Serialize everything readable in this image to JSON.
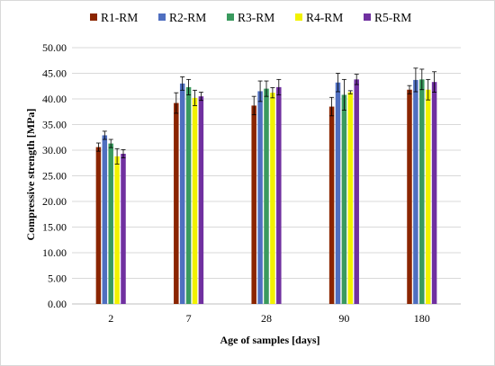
{
  "chart_data": {
    "type": "bar",
    "title": "",
    "xlabel": "Age of samples [days]",
    "ylabel": "Compressive strength [MPa]",
    "categories": [
      "2",
      "7",
      "28",
      "90",
      "180"
    ],
    "ylim": [
      0,
      50
    ],
    "y_ticks": [
      "0.00",
      "5.00",
      "10.00",
      "15.00",
      "20.00",
      "25.00",
      "30.00",
      "35.00",
      "40.00",
      "45.00",
      "50.00"
    ],
    "grid": true,
    "legend_position": "top",
    "series": [
      {
        "name": "R1-RM",
        "color": "#8B2500",
        "values": [
          30.6,
          39.2,
          38.7,
          38.5,
          41.8
        ],
        "errors": [
          0.8,
          2.0,
          1.8,
          1.8,
          0.8
        ]
      },
      {
        "name": "R2-RM",
        "color": "#4F6FC0",
        "values": [
          32.9,
          43.0,
          41.5,
          43.2,
          43.7
        ],
        "errors": [
          0.8,
          1.3,
          2.0,
          1.8,
          2.3
        ]
      },
      {
        "name": "R3-RM",
        "color": "#3A9A5E",
        "values": [
          31.3,
          42.3,
          42.0,
          40.8,
          43.8
        ],
        "errors": [
          0.8,
          1.5,
          1.5,
          3.0,
          2.0
        ]
      },
      {
        "name": "R4-RM",
        "color": "#F2F200",
        "values": [
          28.8,
          40.2,
          41.2,
          41.3,
          41.8
        ],
        "errors": [
          1.5,
          1.5,
          1.0,
          0.3,
          2.0
        ]
      },
      {
        "name": "R5-RM",
        "color": "#7030A0",
        "values": [
          29.3,
          40.5,
          42.3,
          43.8,
          43.3
        ],
        "errors": [
          0.8,
          0.8,
          1.5,
          1.0,
          2.0
        ]
      }
    ]
  }
}
